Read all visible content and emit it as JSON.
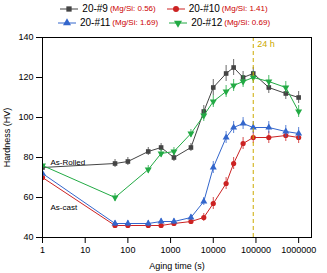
{
  "chart_data": {
    "type": "line",
    "xlabel": "Aging time (s)",
    "ylabel": "Hardness (HV)",
    "log": "x",
    "grid": false,
    "legend": "top",
    "xlim": [
      1,
      2000000
    ],
    "ylim": [
      40,
      140
    ],
    "xticks": [
      1,
      10,
      100,
      1000,
      10000,
      100000,
      1000000
    ],
    "yticks": [
      40,
      60,
      80,
      100,
      120,
      140
    ],
    "vline": {
      "x": 86400,
      "label": "24 h",
      "color": "#ccaa00",
      "line_style": "dashed"
    },
    "annotations": [
      {
        "text": "As-Rolled",
        "y": 75
      },
      {
        "text": "As-cast",
        "y": 58
      }
    ],
    "series": [
      {
        "name": "20-#9",
        "mg_si": "(Mg/Si: 0.56)",
        "color": "#444444",
        "marker": "square",
        "x": [
          1,
          50,
          100,
          300,
          600,
          1200,
          3000,
          6000,
          10000,
          20000,
          30000,
          50000,
          86400,
          200000,
          500000,
          1000000
        ],
        "values": [
          75,
          77,
          78,
          83,
          85,
          80,
          85,
          103,
          115,
          122,
          125,
          120,
          122,
          115,
          112,
          110
        ],
        "yerr": [
          2,
          2,
          2,
          2,
          2,
          2,
          2,
          3,
          4,
          4,
          4,
          3,
          3,
          3,
          3,
          3
        ]
      },
      {
        "name": "20-#10",
        "mg_si": "(Mg/Si: 1.41)",
        "color": "#cc2222",
        "marker": "circle",
        "x": [
          1,
          50,
          100,
          300,
          600,
          1200,
          3000,
          6000,
          10000,
          20000,
          30000,
          50000,
          86400,
          200000,
          500000,
          1000000
        ],
        "values": [
          70,
          46,
          46,
          46,
          46,
          47,
          48,
          50,
          57,
          67,
          77,
          87,
          90,
          90,
          91,
          90
        ],
        "yerr": [
          2,
          1.5,
          1.5,
          1.5,
          1.5,
          1.5,
          1.5,
          2,
          3,
          3,
          3,
          3,
          3,
          3,
          3,
          3
        ]
      },
      {
        "name": "20-#11",
        "mg_si": "(Mg/Si: 1.69)",
        "color": "#3366cc",
        "marker": "triangle-up",
        "x": [
          1,
          50,
          100,
          300,
          600,
          1200,
          3000,
          6000,
          10000,
          20000,
          30000,
          50000,
          86400,
          200000,
          500000,
          1000000
        ],
        "values": [
          72,
          47,
          47,
          47,
          48,
          48,
          50,
          58,
          75,
          90,
          95,
          97,
          95,
          95,
          93,
          92
        ],
        "yerr": [
          2,
          1.5,
          1.5,
          1.5,
          1.5,
          1.5,
          1.5,
          2,
          3,
          3,
          3,
          3,
          3,
          3,
          3,
          3
        ]
      },
      {
        "name": "20-#12",
        "mg_si": "(Mg/Si: 0.69)",
        "color": "#22aa44",
        "marker": "triangle-down",
        "x": [
          1,
          50,
          300,
          600,
          1200,
          3000,
          6000,
          10000,
          20000,
          30000,
          50000,
          86400,
          200000,
          500000,
          1000000
        ],
        "values": [
          76,
          60,
          74,
          82,
          83,
          92,
          101,
          108,
          113,
          116,
          118,
          120,
          118,
          115,
          103
        ],
        "yerr": [
          2,
          2,
          2,
          2,
          2,
          2,
          3,
          3,
          3,
          3,
          3,
          3,
          3,
          3,
          3
        ]
      }
    ]
  }
}
